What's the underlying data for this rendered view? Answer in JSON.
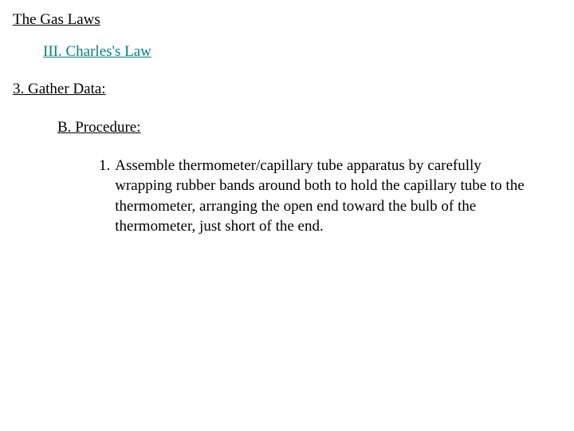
{
  "title": "The Gas Laws",
  "section": {
    "number": "III.",
    "label": "Charles's Law"
  },
  "step": {
    "number": "3.",
    "label": "Gather Data:"
  },
  "subsection": {
    "number": "B.",
    "label": "Procedure:"
  },
  "procedure": {
    "item_number": "1.",
    "item_text": "Assemble thermometer/capillary tube apparatus by carefully wrapping rubber bands around both to hold the capillary tube to the thermometer, arranging the open end toward the bulb of the thermometer, just short of the end."
  },
  "colors": {
    "accent": "#008080",
    "text": "#000000",
    "background": "#ffffff"
  }
}
